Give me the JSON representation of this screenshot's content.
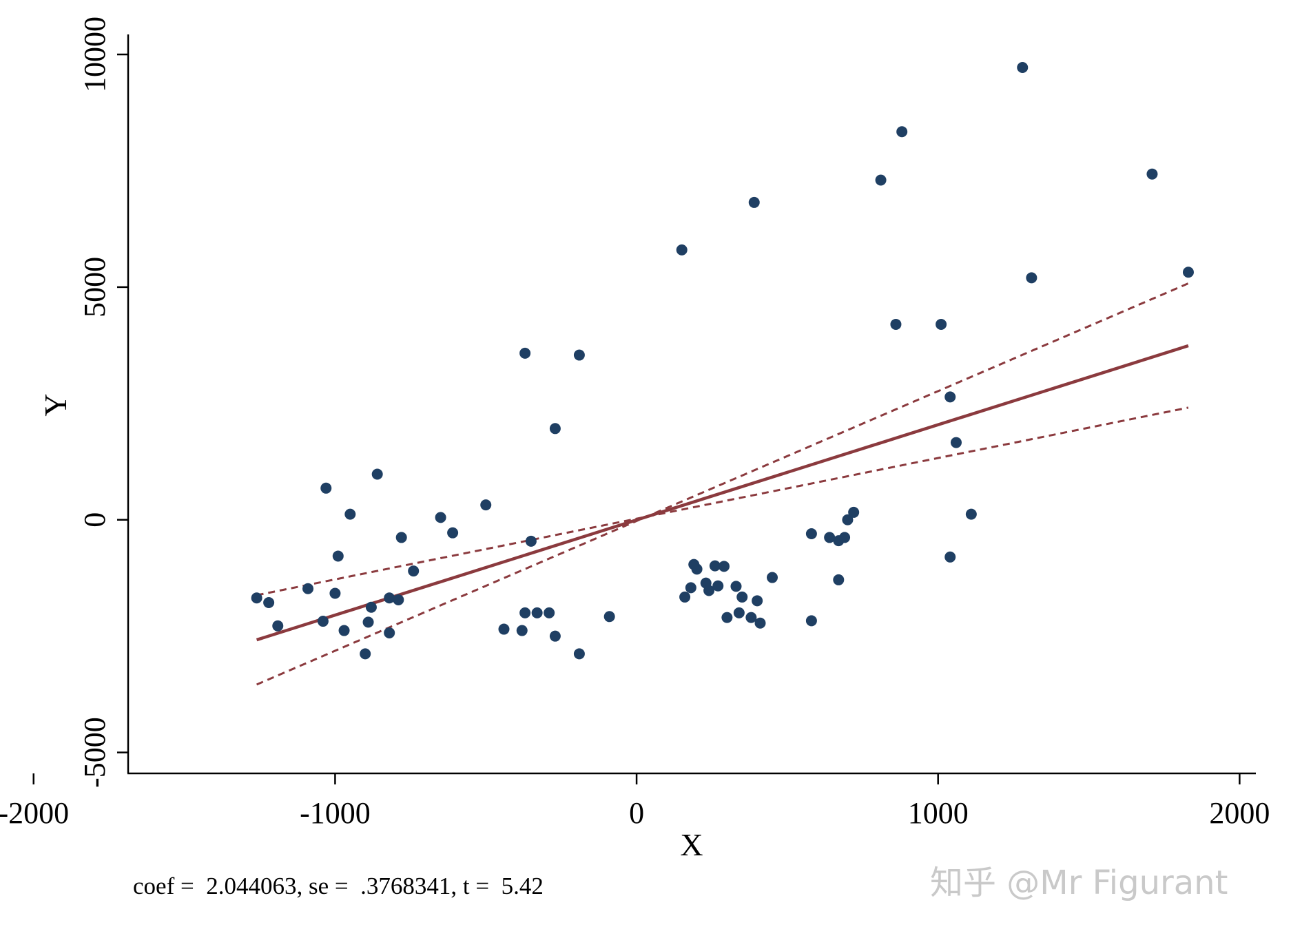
{
  "chart_data": {
    "type": "scatter",
    "title": "",
    "xlabel": "X",
    "ylabel": "Y",
    "xlim": [
      -2100,
      2070
    ],
    "ylim": [
      -5450,
      10430
    ],
    "xticks": [
      -2000,
      -1000,
      0,
      1000,
      2000
    ],
    "xtick_labels": [
      "-2000",
      "-1000",
      "0",
      "1000",
      "2000"
    ],
    "yticks": [
      -5000,
      0,
      5000,
      10000
    ],
    "ytick_labels": [
      "-5000",
      "0",
      "5000",
      "10000"
    ],
    "grid": false,
    "legend": "none",
    "points": [
      {
        "x": -1260,
        "y": -1680
      },
      {
        "x": -1220,
        "y": -1780
      },
      {
        "x": -1190,
        "y": -2280
      },
      {
        "x": -1090,
        "y": -1480
      },
      {
        "x": -1040,
        "y": -2180
      },
      {
        "x": -1030,
        "y": 680
      },
      {
        "x": -1000,
        "y": -1580
      },
      {
        "x": -990,
        "y": -780
      },
      {
        "x": -970,
        "y": -2380
      },
      {
        "x": -950,
        "y": 120
      },
      {
        "x": -900,
        "y": -2880
      },
      {
        "x": -890,
        "y": -2200
      },
      {
        "x": -880,
        "y": -1880
      },
      {
        "x": -860,
        "y": 980
      },
      {
        "x": -820,
        "y": -1680
      },
      {
        "x": -820,
        "y": -2430
      },
      {
        "x": -790,
        "y": -1720
      },
      {
        "x": -780,
        "y": -380
      },
      {
        "x": -740,
        "y": -1100
      },
      {
        "x": -650,
        "y": 50
      },
      {
        "x": -610,
        "y": -280
      },
      {
        "x": -500,
        "y": 320
      },
      {
        "x": -440,
        "y": -2350
      },
      {
        "x": -380,
        "y": -2380
      },
      {
        "x": -370,
        "y": 3580
      },
      {
        "x": -370,
        "y": -2000
      },
      {
        "x": -350,
        "y": -460
      },
      {
        "x": -330,
        "y": -2000
      },
      {
        "x": -290,
        "y": -2000
      },
      {
        "x": -270,
        "y": 1960
      },
      {
        "x": -270,
        "y": -2500
      },
      {
        "x": -190,
        "y": 3540
      },
      {
        "x": -190,
        "y": -2880
      },
      {
        "x": -90,
        "y": -2080
      },
      {
        "x": 150,
        "y": 5800
      },
      {
        "x": 160,
        "y": -1660
      },
      {
        "x": 180,
        "y": -1460
      },
      {
        "x": 190,
        "y": -960
      },
      {
        "x": 200,
        "y": -1060
      },
      {
        "x": 230,
        "y": -1360
      },
      {
        "x": 240,
        "y": -1520
      },
      {
        "x": 260,
        "y": -990
      },
      {
        "x": 270,
        "y": -1420
      },
      {
        "x": 290,
        "y": -1000
      },
      {
        "x": 300,
        "y": -2100
      },
      {
        "x": 330,
        "y": -1430
      },
      {
        "x": 340,
        "y": -2000
      },
      {
        "x": 350,
        "y": -1660
      },
      {
        "x": 380,
        "y": -2100
      },
      {
        "x": 390,
        "y": 6820
      },
      {
        "x": 400,
        "y": -1740
      },
      {
        "x": 410,
        "y": -2220
      },
      {
        "x": 450,
        "y": -1240
      },
      {
        "x": 580,
        "y": -300
      },
      {
        "x": 580,
        "y": -2170
      },
      {
        "x": 640,
        "y": -380
      },
      {
        "x": 670,
        "y": -450
      },
      {
        "x": 670,
        "y": -1290
      },
      {
        "x": 690,
        "y": -380
      },
      {
        "x": 700,
        "y": 0
      },
      {
        "x": 720,
        "y": 160
      },
      {
        "x": 810,
        "y": 7300
      },
      {
        "x": 860,
        "y": 4200
      },
      {
        "x": 880,
        "y": 8340
      },
      {
        "x": 1010,
        "y": 4200
      },
      {
        "x": 1040,
        "y": 2640
      },
      {
        "x": 1040,
        "y": -800
      },
      {
        "x": 1060,
        "y": 1660
      },
      {
        "x": 1110,
        "y": 120
      },
      {
        "x": 1280,
        "y": 9720
      },
      {
        "x": 1310,
        "y": 5200
      },
      {
        "x": 1710,
        "y": 7430
      },
      {
        "x": 1830,
        "y": 5320
      }
    ],
    "fit_line": {
      "x": [
        -1260,
        1830
      ],
      "y": [
        -2580,
        3740
      ]
    },
    "ci_upper": {
      "x": [
        -1260,
        1830
      ],
      "y": [
        -1620,
        2410
      ]
    },
    "ci_lower": {
      "x": [
        -1260,
        1830
      ],
      "y": [
        -3540,
        5080
      ]
    },
    "note": "coef =  2.044063, se =  .3768341, t =  5.42",
    "colors": {
      "points": "#1f3f63",
      "fit": "#8b3a3e",
      "axis": "#000000"
    }
  },
  "watermark": "知乎 @Mr Figurant"
}
